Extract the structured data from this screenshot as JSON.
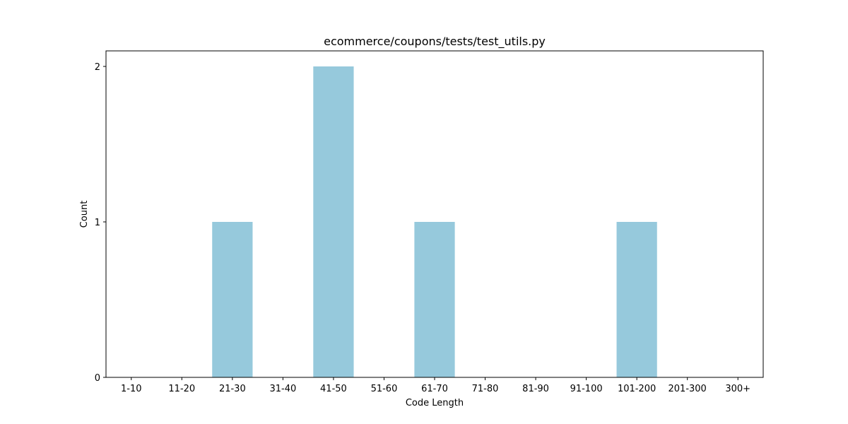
{
  "chart_data": {
    "type": "bar",
    "title": "ecommerce/coupons/tests/test_utils.py",
    "xlabel": "Code Length",
    "ylabel": "Count",
    "categories": [
      "1-10",
      "11-20",
      "21-30",
      "31-40",
      "41-50",
      "51-60",
      "61-70",
      "71-80",
      "81-90",
      "91-100",
      "101-200",
      "201-300",
      "300+"
    ],
    "values": [
      0,
      0,
      1,
      0,
      2,
      0,
      1,
      0,
      0,
      0,
      1,
      0,
      0
    ],
    "yticks": [
      "0",
      "1",
      "2"
    ],
    "ylim": [
      0,
      2.1
    ],
    "grid": false,
    "legend": "none",
    "bar_color": "#96c9dc"
  }
}
